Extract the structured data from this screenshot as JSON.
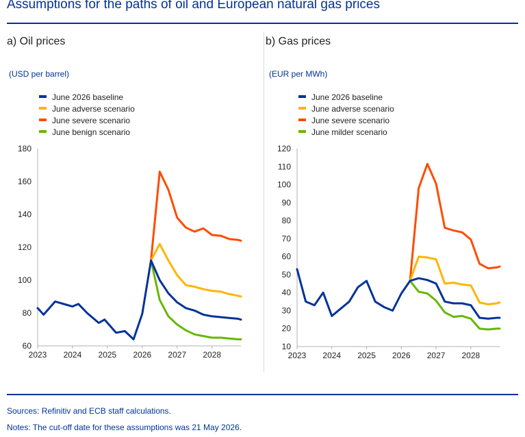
{
  "title": "Assumptions for the paths of oil and European natural gas prices",
  "footer": {
    "sources": "Sources: Refinitiv and ECB staff calculations.",
    "notes": "Notes: The cut-off date for these assumptions was 21 May 2026."
  },
  "colors": {
    "title": "#003299",
    "baseline": "#003299",
    "adverse": "#FFB400",
    "severe": "#FF4B00",
    "benign": "#65B800"
  },
  "chart_data": [
    {
      "type": "line",
      "title": "a) Oil prices",
      "ylabel": "(USD per barrel)",
      "x_ticks": [
        "2023",
        "2024",
        "2025",
        "2026",
        "2027",
        "2028"
      ],
      "xlim": [
        2023.0,
        2028.83
      ],
      "ylim": [
        60,
        180
      ],
      "y_ticks": [
        60,
        80,
        100,
        120,
        140,
        160,
        180
      ],
      "legend_position": "top-left",
      "grid": false,
      "series": [
        {
          "name": "June 2026 baseline",
          "color_key": "baseline",
          "x": [
            2023.0,
            2023.17,
            2023.5,
            2023.83,
            2024.0,
            2024.17,
            2024.42,
            2024.75,
            2024.92,
            2025.25,
            2025.5,
            2025.75,
            2026.0,
            2026.25,
            2026.5,
            2026.75,
            2027.0,
            2027.25,
            2027.5,
            2027.75,
            2028.0,
            2028.25,
            2028.5,
            2028.75,
            2028.83
          ],
          "y": [
            83,
            79,
            87,
            85,
            84,
            85.5,
            80,
            74,
            76,
            68,
            69,
            64,
            79.5,
            112,
            100,
            92,
            86.5,
            83,
            81.5,
            79,
            78,
            77.5,
            77,
            76.5,
            76
          ]
        },
        {
          "name": "June adverse scenario",
          "color_key": "adverse",
          "x": [
            2026.25,
            2026.5,
            2026.75,
            2027.0,
            2027.25,
            2027.5,
            2027.75,
            2028.0,
            2028.25,
            2028.5,
            2028.75,
            2028.83
          ],
          "y": [
            112,
            122,
            112,
            103,
            97,
            96,
            94.5,
            93.5,
            93,
            91.5,
            90.5,
            90
          ]
        },
        {
          "name": "June severe scenario",
          "color_key": "severe",
          "x": [
            2026.25,
            2026.5,
            2026.75,
            2027.0,
            2027.25,
            2027.5,
            2027.75,
            2028.0,
            2028.25,
            2028.5,
            2028.75,
            2028.83
          ],
          "y": [
            112,
            166,
            155,
            138,
            132,
            129.5,
            131.5,
            127.5,
            127,
            125,
            124.5,
            124
          ]
        },
        {
          "name": "June benign scenario",
          "color_key": "benign",
          "x": [
            2026.25,
            2026.5,
            2026.75,
            2027.0,
            2027.25,
            2027.5,
            2027.75,
            2028.0,
            2028.25,
            2028.5,
            2028.75,
            2028.83
          ],
          "y": [
            112,
            88,
            78,
            73,
            69.5,
            67,
            66,
            65,
            65,
            64.5,
            64,
            64
          ]
        }
      ]
    },
    {
      "type": "line",
      "title": "b) Gas prices",
      "ylabel": "(EUR per MWh)",
      "x_ticks": [
        "2023",
        "2024",
        "2025",
        "2026",
        "2027",
        "2028"
      ],
      "xlim": [
        2023.0,
        2028.83
      ],
      "ylim": [
        10,
        120
      ],
      "y_ticks": [
        10,
        20,
        30,
        40,
        50,
        60,
        70,
        80,
        90,
        100,
        110,
        120
      ],
      "legend_position": "top-left",
      "grid": false,
      "series": [
        {
          "name": "June 2026 baseline",
          "color_key": "baseline",
          "x": [
            2023.0,
            2023.25,
            2023.5,
            2023.75,
            2024.0,
            2024.25,
            2024.5,
            2024.75,
            2025.0,
            2025.25,
            2025.5,
            2025.75,
            2026.0,
            2026.25,
            2026.5,
            2026.75,
            2027.0,
            2027.25,
            2027.5,
            2027.75,
            2028.0,
            2028.25,
            2028.5,
            2028.75,
            2028.83
          ],
          "y": [
            53,
            35,
            33,
            40,
            27,
            31,
            35,
            43,
            46.5,
            35,
            32,
            30,
            39.5,
            46.5,
            48,
            47,
            45,
            35,
            34,
            34,
            33,
            26,
            25.5,
            26,
            26
          ]
        },
        {
          "name": "June adverse scenario",
          "color_key": "adverse",
          "x": [
            2026.25,
            2026.5,
            2026.75,
            2027.0,
            2027.25,
            2027.5,
            2027.75,
            2028.0,
            2028.25,
            2028.5,
            2028.75,
            2028.83
          ],
          "y": [
            46.5,
            60,
            59.5,
            58.5,
            45,
            45.5,
            44.5,
            44,
            34.5,
            33.5,
            34,
            34.5
          ]
        },
        {
          "name": "June severe scenario",
          "color_key": "severe",
          "x": [
            2026.25,
            2026.5,
            2026.75,
            2027.0,
            2027.25,
            2027.5,
            2027.75,
            2028.0,
            2028.25,
            2028.5,
            2028.75,
            2028.83
          ],
          "y": [
            46.5,
            98,
            111.5,
            100.5,
            76,
            74.5,
            73.5,
            69.5,
            56,
            53.5,
            54,
            54.5
          ]
        },
        {
          "name": "June milder scenario",
          "color_key": "benign",
          "x": [
            2026.25,
            2026.5,
            2026.75,
            2027.0,
            2027.25,
            2027.5,
            2027.75,
            2028.0,
            2028.25,
            2028.5,
            2028.75,
            2028.83
          ],
          "y": [
            46.5,
            40.5,
            39.5,
            35.5,
            29,
            26.5,
            27,
            25.5,
            20,
            19.5,
            20,
            20
          ]
        }
      ]
    }
  ]
}
